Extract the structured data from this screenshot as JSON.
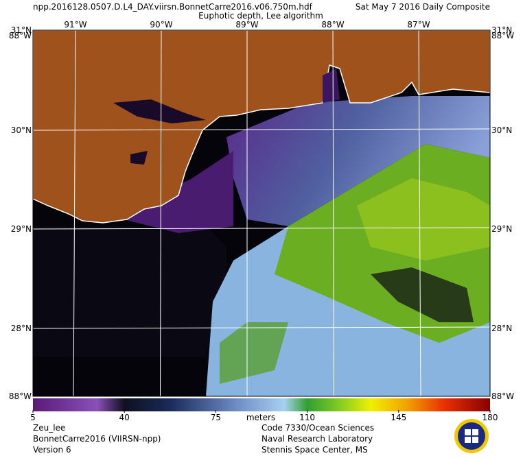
{
  "header": {
    "file": "npp.2016128.0507.D.L4_DAY.viirsn.BonnetCarre2016.v06.750m.hdf",
    "date": "Sat May  7 2016 Daily Composite",
    "subtitle": "Euphotic depth, Lee algorithm"
  },
  "map": {
    "lon_labels": [
      "91°W",
      "90°W",
      "89°W",
      "88°W",
      "87°W"
    ],
    "lat_labels": [
      "31°N",
      "30°N",
      "29°N",
      "28°N"
    ],
    "corner_label": "88°W"
  },
  "colorbar": {
    "range": [
      5,
      180
    ],
    "ticks": [
      5,
      40,
      75,
      110,
      145,
      180
    ],
    "unit": "meters"
  },
  "footer": {
    "left": [
      "Zeu_lee",
      "BonnetCarre2016 (VIIRSN-npp)",
      "Version 6"
    ],
    "right": [
      "Code 7330/Ocean Sciences",
      "Naval Research Laboratory",
      "Stennis Space Center, MS"
    ]
  }
}
